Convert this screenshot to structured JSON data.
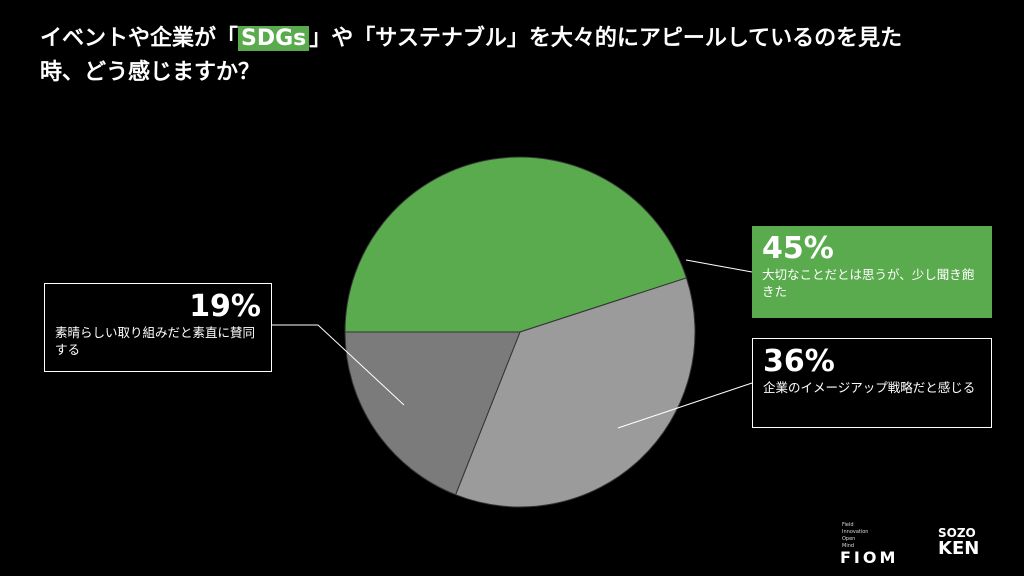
{
  "chart_data": {
    "type": "pie",
    "title": [
      "イベントや企業が「",
      "SDGs",
      "」や「サステナブル」を大々的にアピールしているのを見た時、どう感じますか？"
    ],
    "categories": [
      "大切なことだとは思うが、少し聞き飽きた",
      "企業のイメージアップ戦略だと感じる",
      "素晴らしい取り組みだと素直に賛同する"
    ],
    "values": [
      45,
      36,
      19
    ],
    "value_labels": [
      "45%",
      "36%",
      "19%"
    ],
    "colors": [
      "#5aaa4e",
      "#9b9b9b",
      "#7b7b7b"
    ]
  },
  "logos": {
    "fiom_tagline": [
      "Field",
      "Innovation",
      "Open",
      "Mind"
    ],
    "fiom": "FIOM",
    "sozoken": [
      "SOZO",
      "KEN"
    ]
  }
}
